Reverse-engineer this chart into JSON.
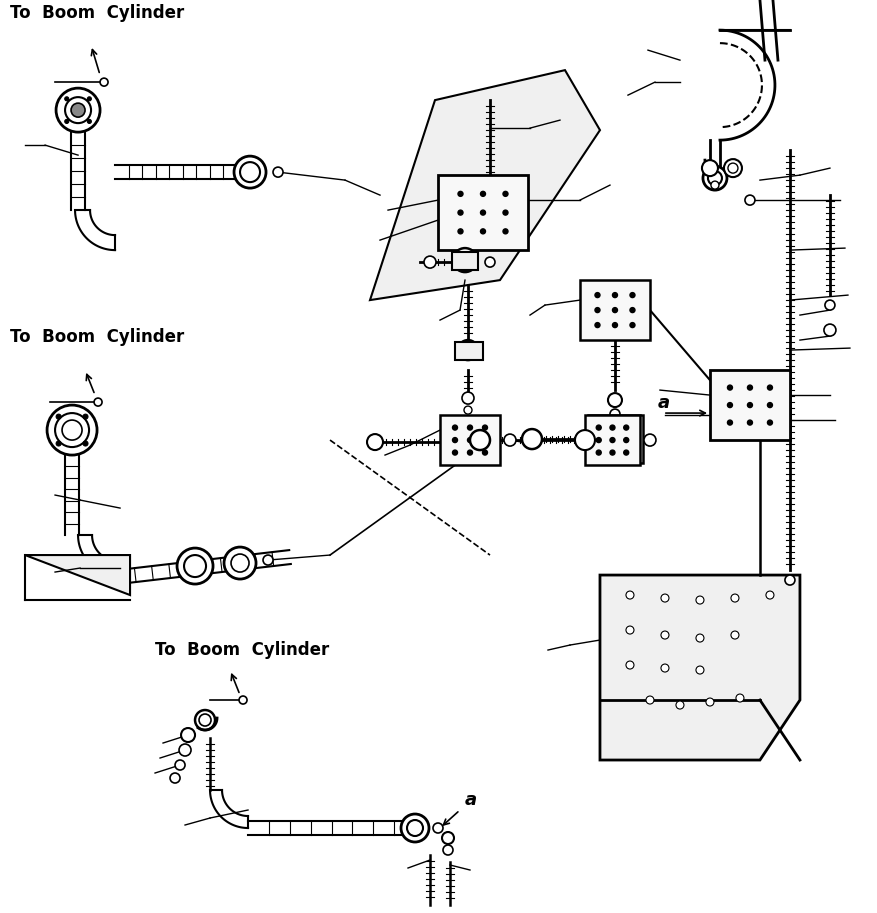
{
  "bg_color": "#ffffff",
  "line_color": "#000000",
  "labels": {
    "to_boom1": "To  Boom  Cylinder",
    "to_boom2": "To  Boom  Cylinder",
    "to_boom3": "To  Boom  Cylinder",
    "a1": "a",
    "a2": "a"
  },
  "fontsize_label": 12,
  "fontsize_a": 13,
  "figw": 8.78,
  "figh": 9.13,
  "dpi": 100
}
